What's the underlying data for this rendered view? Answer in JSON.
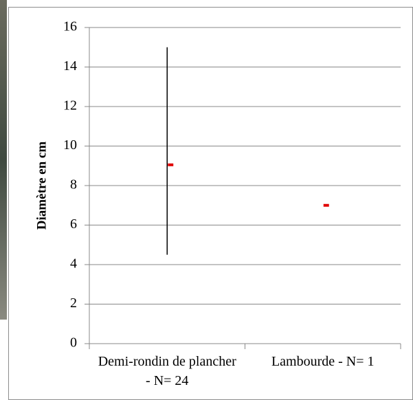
{
  "chart_data": {
    "type": "hilo",
    "y_label": "Diamètre en cm",
    "categories": [
      "Demi-rondin de plancher - N= 24",
      "Lambourde - N= 1"
    ],
    "values": [
      9.05,
      7
    ],
    "low": [
      4.5,
      null
    ],
    "high": [
      15,
      null
    ],
    "marker_color": "#e00000",
    "line_color": "#000000",
    "ylim": [
      0,
      16
    ],
    "yticks": [
      0,
      2,
      4,
      6,
      8,
      10,
      12,
      14,
      16
    ],
    "grid": true
  }
}
